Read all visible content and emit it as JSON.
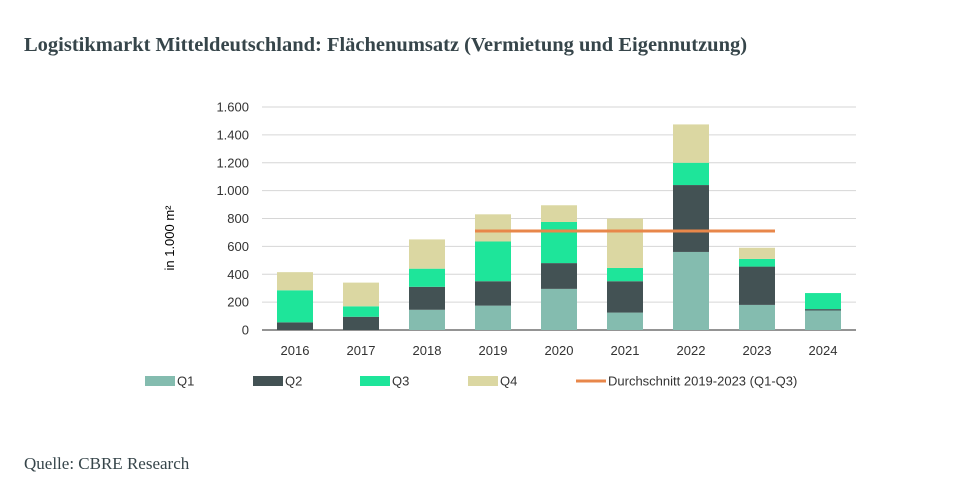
{
  "page": {
    "title": "Logistikmarkt Mitteldeutschland: Flächenumsatz (Vermietung und Eigennutzung)",
    "source": "Quelle: CBRE Research"
  },
  "colors": {
    "Q1": "#84bcaf",
    "Q2": "#435254",
    "Q3": "#1ee59a",
    "Q4": "#dbd7a2",
    "avg": "#e8874a",
    "grid": "#d6d6d6",
    "axis": "#555555"
  },
  "chart_data": {
    "type": "bar",
    "stacked": true,
    "title": "",
    "xlabel": "",
    "ylabel": "in 1.000 m²",
    "ylim": [
      0,
      1600
    ],
    "yticks": [
      0,
      200,
      400,
      600,
      800,
      1000,
      1200,
      1400,
      1600
    ],
    "ytick_labels": [
      "0",
      "200",
      "400",
      "600",
      "800",
      "1.000",
      "1.200",
      "1.400",
      "1.600"
    ],
    "categories": [
      "2016",
      "2017",
      "2018",
      "2019",
      "2020",
      "2021",
      "2022",
      "2023",
      "2024"
    ],
    "series": [
      {
        "name": "Q1",
        "color_key": "Q1",
        "values": [
          0,
          0,
          145,
          175,
          295,
          125,
          560,
          180,
          140
        ]
      },
      {
        "name": "Q2",
        "color_key": "Q2",
        "values": [
          55,
          95,
          165,
          175,
          185,
          225,
          480,
          275,
          10
        ]
      },
      {
        "name": "Q3",
        "color_key": "Q3",
        "values": [
          230,
          75,
          130,
          285,
          295,
          95,
          160,
          55,
          115
        ]
      },
      {
        "name": "Q4",
        "color_key": "Q4",
        "values": [
          130,
          170,
          210,
          195,
          120,
          355,
          275,
          80,
          0
        ]
      }
    ],
    "reference_line": {
      "name": "Durchschnitt 2019-2023 (Q1-Q3)",
      "value": 710,
      "from": "2019",
      "to": "2023"
    },
    "grid": true,
    "legend_position": "bottom"
  }
}
